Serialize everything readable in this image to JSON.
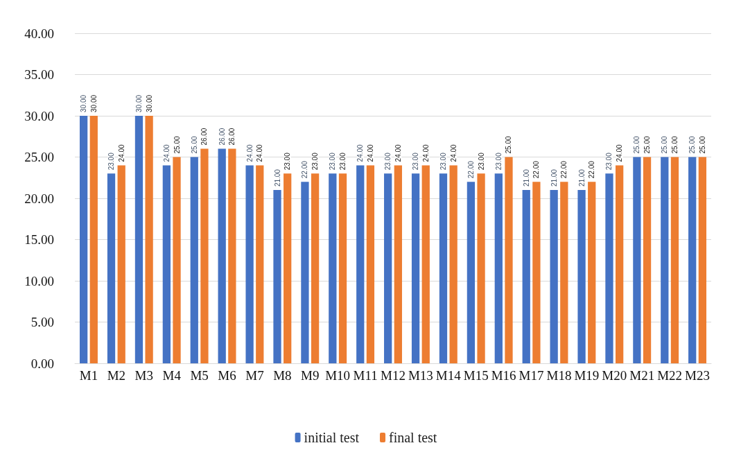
{
  "chart_data": {
    "type": "bar",
    "categories": [
      "M1",
      "M2",
      "M3",
      "M4",
      "M5",
      "M6",
      "M7",
      "M8",
      "M9",
      "M10",
      "M11",
      "M12",
      "M13",
      "M14",
      "M15",
      "M16",
      "M17",
      "M18",
      "M19",
      "M20",
      "M21",
      "M22",
      "M23"
    ],
    "series": [
      {
        "name": "initial test",
        "color": "#4472c4",
        "values": [
          30,
          23,
          30,
          24,
          25,
          26,
          24,
          21,
          22,
          23,
          24,
          23,
          23,
          23,
          22,
          23,
          21,
          21,
          21,
          23,
          25,
          25,
          25
        ],
        "value_labels": [
          "30.00",
          "23.00",
          "30.00",
          "24.00",
          "25.00",
          "26.00",
          "24.00",
          "21.00",
          "22.00",
          "23.00",
          "24.00",
          "23.00",
          "23.00",
          "23.00",
          "22.00",
          "23.00",
          "21.00",
          "21.00",
          "21.00",
          "23.00",
          "25.00",
          "25.00",
          "25.00"
        ]
      },
      {
        "name": "final test",
        "color": "#ed7d31",
        "values": [
          30,
          24,
          30,
          25,
          26,
          26,
          24,
          23,
          23,
          23,
          24,
          24,
          24,
          24,
          23,
          25,
          22,
          22,
          22,
          24,
          25,
          25,
          25
        ],
        "value_labels": [
          "30.00",
          "24.00",
          "30.00",
          "25.00",
          "26.00",
          "26.00",
          "24.00",
          "23.00",
          "23.00",
          "23.00",
          "24.00",
          "24.00",
          "24.00",
          "24.00",
          "23.00",
          "25.00",
          "22.00",
          "22.00",
          "22.00",
          "24.00",
          "25.00",
          "25.00",
          "25.00"
        ]
      }
    ],
    "ylim": [
      0,
      40
    ],
    "yticks": [
      {
        "value": 0,
        "label": "0.00"
      },
      {
        "value": 5,
        "label": "5.00"
      },
      {
        "value": 10,
        "label": "10.00"
      },
      {
        "value": 15,
        "label": "15.00"
      },
      {
        "value": 20,
        "label": "20.00"
      },
      {
        "value": 25,
        "label": "25.00"
      },
      {
        "value": 30,
        "label": "30.00"
      },
      {
        "value": 35,
        "label": "35.00"
      },
      {
        "value": 40,
        "label": "40.00"
      }
    ],
    "grid": "y",
    "legend": "bottom"
  }
}
